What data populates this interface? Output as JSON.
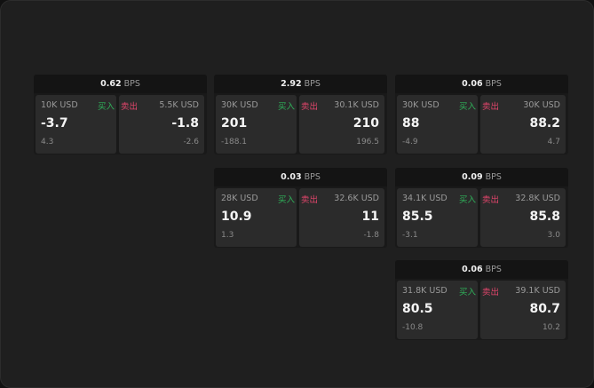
{
  "labels": {
    "unit": "BPS",
    "buy": "买入",
    "sell": "卖出"
  },
  "colors": {
    "buy": "#2fb25a",
    "sell": "#e0456b"
  },
  "widgets": [
    {
      "spread": "0.62",
      "buy": {
        "amount": "10K USD",
        "price": "-3.7",
        "change": "4.3"
      },
      "sell": {
        "amount": "5.5K USD",
        "price": "-1.8",
        "change": "-2.6"
      }
    },
    {
      "spread": "2.92",
      "buy": {
        "amount": "30K USD",
        "price": "201",
        "change": "-188.1"
      },
      "sell": {
        "amount": "30.1K USD",
        "price": "210",
        "change": "196.5"
      }
    },
    {
      "spread": "0.06",
      "buy": {
        "amount": "30K USD",
        "price": "88",
        "change": "-4.9"
      },
      "sell": {
        "amount": "30K USD",
        "price": "88.2",
        "change": "4.7"
      }
    },
    {
      "spread": "0.03",
      "buy": {
        "amount": "28K USD",
        "price": "10.9",
        "change": "1.3"
      },
      "sell": {
        "amount": "32.6K USD",
        "price": "11",
        "change": "-1.8"
      }
    },
    {
      "spread": "0.09",
      "buy": {
        "amount": "34.1K USD",
        "price": "85.5",
        "change": "-3.1"
      },
      "sell": {
        "amount": "32.8K USD",
        "price": "85.8",
        "change": "3.0"
      }
    },
    {
      "spread": "0.06",
      "buy": {
        "amount": "31.8K USD",
        "price": "80.5",
        "change": "-10.8"
      },
      "sell": {
        "amount": "39.1K USD",
        "price": "80.7",
        "change": "10.2"
      }
    }
  ]
}
